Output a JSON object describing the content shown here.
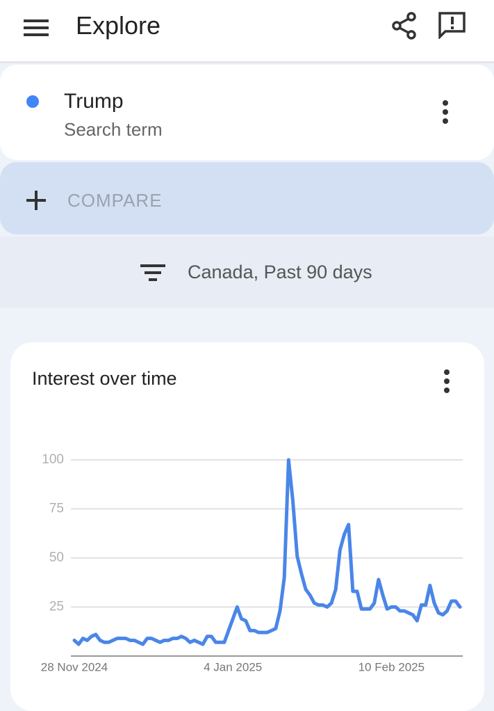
{
  "header": {
    "title": "Explore"
  },
  "search_term": {
    "term": "Trump",
    "kind": "Search term",
    "color": "#4285f4"
  },
  "compare": {
    "label": "COMPARE"
  },
  "filter": {
    "label": "Canada, Past 90 days"
  },
  "chart_data": {
    "type": "line",
    "title": "Interest over time",
    "color": "#4a86e8",
    "x": [
      "2024-11-28",
      "2024-11-29",
      "2024-11-30",
      "2024-12-01",
      "2024-12-02",
      "2024-12-03",
      "2024-12-04",
      "2024-12-05",
      "2024-12-06",
      "2024-12-07",
      "2024-12-08",
      "2024-12-09",
      "2024-12-10",
      "2024-12-11",
      "2024-12-12",
      "2024-12-13",
      "2024-12-14",
      "2024-12-15",
      "2024-12-16",
      "2024-12-17",
      "2024-12-18",
      "2024-12-19",
      "2024-12-20",
      "2024-12-21",
      "2024-12-22",
      "2024-12-23",
      "2024-12-24",
      "2024-12-25",
      "2024-12-26",
      "2024-12-27",
      "2024-12-28",
      "2024-12-29",
      "2024-12-30",
      "2024-12-31",
      "2025-01-01",
      "2025-01-02",
      "2025-01-03",
      "2025-01-04",
      "2025-01-05",
      "2025-01-06",
      "2025-01-07",
      "2025-01-08",
      "2025-01-09",
      "2025-01-10",
      "2025-01-11",
      "2025-01-12",
      "2025-01-13",
      "2025-01-14",
      "2025-01-15",
      "2025-01-16",
      "2025-01-17",
      "2025-01-18",
      "2025-01-19",
      "2025-01-20",
      "2025-01-21",
      "2025-01-22",
      "2025-01-23",
      "2025-01-24",
      "2025-01-25",
      "2025-01-26",
      "2025-01-27",
      "2025-01-28",
      "2025-01-29",
      "2025-01-30",
      "2025-01-31",
      "2025-02-01",
      "2025-02-02",
      "2025-02-03",
      "2025-02-04",
      "2025-02-05",
      "2025-02-06",
      "2025-02-07",
      "2025-02-08",
      "2025-02-09",
      "2025-02-10",
      "2025-02-11",
      "2025-02-12",
      "2025-02-13",
      "2025-02-14",
      "2025-02-15",
      "2025-02-16",
      "2025-02-17",
      "2025-02-18",
      "2025-02-19",
      "2025-02-20",
      "2025-02-21",
      "2025-02-22",
      "2025-02-23",
      "2025-02-24",
      "2025-02-25",
      "2025-02-26"
    ],
    "values": [
      8,
      6,
      9,
      8,
      10,
      11,
      8,
      7,
      7,
      8,
      9,
      9,
      9,
      8,
      8,
      7,
      6,
      9,
      9,
      8,
      7,
      8,
      8,
      9,
      9,
      10,
      9,
      7,
      8,
      7,
      6,
      10,
      10,
      7,
      7,
      7,
      13,
      19,
      25,
      19,
      18,
      13,
      13,
      12,
      12,
      12,
      13,
      14,
      23,
      40,
      100,
      79,
      51,
      42,
      34,
      31,
      27,
      26,
      26,
      25,
      27,
      34,
      54,
      62,
      67,
      33,
      33,
      24,
      24,
      24,
      27,
      39,
      31,
      24,
      25,
      25,
      23,
      23,
      22,
      21,
      18,
      26,
      26,
      36,
      27,
      22,
      21,
      23,
      28,
      28,
      25
    ],
    "xlim": [
      "2024-11-28",
      "2025-02-26"
    ],
    "xticks": [
      {
        "value": "2024-11-28",
        "label": "28 Nov 2024"
      },
      {
        "value": "2025-01-04",
        "label": "4 Jan 2025"
      },
      {
        "value": "2025-02-10",
        "label": "10 Feb 2025"
      }
    ],
    "ylim": [
      0,
      100
    ],
    "yticks": [
      25,
      50,
      75,
      100
    ],
    "grid": true
  }
}
